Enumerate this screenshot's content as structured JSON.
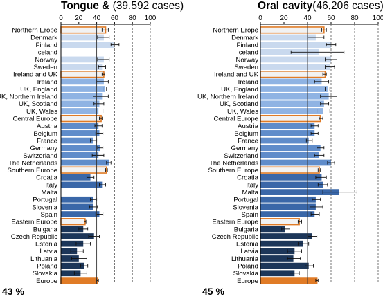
{
  "chart_data": [
    {
      "type": "bar",
      "orientation": "horizontal",
      "title": "Tongue &",
      "subtitle": "(39,592 cases)",
      "overall_label": "43 %",
      "xlim": [
        0,
        100
      ],
      "xticks": [
        "0",
        "20",
        "40",
        "60",
        "80",
        "100"
      ],
      "reference_lines": [
        40,
        60,
        80,
        100
      ],
      "grid": false,
      "categories": [
        "Northern Erope",
        "Denmark",
        "Finland",
        "Iceland",
        "Norway",
        "Sweden",
        "Ireland and UK",
        "Ireland",
        "UK, England",
        "UK, Northern Ireland",
        "UK, Scotland",
        "UK, Wales",
        "Central Europe",
        "Austria",
        "Belgium",
        "France",
        "Germany",
        "Switzerland",
        "The Netherlands",
        "Southern Europe",
        "Croatia",
        "Italy",
        "Malta",
        "Portugal",
        "Slovenia",
        "Spain",
        "Eastern Europe",
        "Bulgaria",
        "Czech Republic",
        "Estonia",
        "Latvia",
        "Lithuania",
        "Poland",
        "Slovakia",
        "Europe"
      ],
      "values": [
        50,
        48,
        60,
        null,
        48,
        46,
        48,
        48,
        49,
        46,
        43,
        42,
        45,
        42,
        43,
        36,
        44,
        42,
        54,
        51,
        33,
        46,
        null,
        36,
        36,
        43,
        27,
        25,
        37,
        25,
        18,
        20,
        26,
        22,
        41
      ],
      "error_low": [
        46,
        41,
        56,
        null,
        41,
        42,
        46,
        40,
        47,
        36,
        37,
        36,
        43,
        38,
        39,
        33,
        41,
        35,
        51,
        50,
        29,
        43,
        null,
        33,
        32,
        39,
        26,
        20,
        31,
        17,
        11,
        12,
        22,
        15,
        40
      ],
      "error_high": [
        53,
        54,
        65,
        null,
        54,
        50,
        49,
        53,
        51,
        53,
        48,
        47,
        46,
        46,
        47,
        40,
        47,
        48,
        56,
        52,
        37,
        50,
        null,
        40,
        41,
        47,
        28,
        30,
        43,
        33,
        25,
        29,
        30,
        29,
        42
      ],
      "groups": [
        "Northern Erope",
        "Ireland and UK",
        "Central Europe",
        "Southern Europe",
        "Eastern Europe",
        "Europe"
      ]
    },
    {
      "type": "bar",
      "orientation": "horizontal",
      "title": "Oral cavity",
      "subtitle": "(46,206 cases)",
      "overall_label": "45 %",
      "xlim": [
        0,
        100
      ],
      "xticks": [
        "0",
        "20",
        "40",
        "60",
        "80",
        "100"
      ],
      "reference_lines": [
        40,
        60,
        80,
        100
      ],
      "grid": false,
      "categories": [
        "Northern Erope",
        "Denmark",
        "Finland",
        "Iceland",
        "Norway",
        "Sweden",
        "Ireland and UK",
        "Ireland",
        "UK, England",
        "UK, Northern Ireland",
        "UK, Scotland",
        "UK, Wales",
        "Central Europe",
        "Austria",
        "Belgium",
        "France",
        "Germany",
        "Switzerland",
        "The Netherlands",
        "Southern Europe",
        "Croatia",
        "Italy",
        "Malta",
        "Portugal",
        "Slovenia",
        "Spain",
        "Eastern Europe",
        "Bulgaria",
        "Czech Republic",
        "Estonia",
        "Latvia",
        "Lithuania",
        "Poland",
        "Slovakia",
        "Europe"
      ],
      "values": [
        54,
        47,
        60,
        50,
        60,
        59,
        55,
        52,
        57,
        58,
        54,
        53,
        51,
        46,
        46,
        41,
        51,
        50,
        60,
        50,
        52,
        53,
        67,
        47,
        47,
        46,
        33,
        21,
        44,
        36,
        29,
        28,
        41,
        29,
        48
      ],
      "error_low": [
        52,
        40,
        56,
        26,
        55,
        55,
        53,
        46,
        55,
        51,
        51,
        48,
        50,
        43,
        43,
        39,
        48,
        46,
        57,
        49,
        47,
        49,
        53,
        44,
        42,
        43,
        32,
        18,
        40,
        32,
        23,
        23,
        38,
        25,
        47
      ],
      "error_high": [
        56,
        54,
        64,
        71,
        65,
        63,
        56,
        58,
        59,
        65,
        58,
        59,
        53,
        49,
        49,
        44,
        54,
        54,
        63,
        51,
        56,
        57,
        82,
        51,
        53,
        50,
        35,
        25,
        48,
        41,
        35,
        34,
        45,
        33,
        49
      ],
      "groups": [
        "Northern Erope",
        "Ireland and UK",
        "Central Europe",
        "Southern Europe",
        "Eastern Europe",
        "Europe"
      ]
    }
  ],
  "colors": {
    "nordic": "#c9d9ee",
    "uk": "#8fb3e3",
    "central": "#5f8cca",
    "southern": "#3a67a8",
    "eastern": "#1c3659",
    "group_outline": "#e07b26",
    "europe_fill": "#e07b26",
    "group_fill": "#f2f2f2"
  }
}
